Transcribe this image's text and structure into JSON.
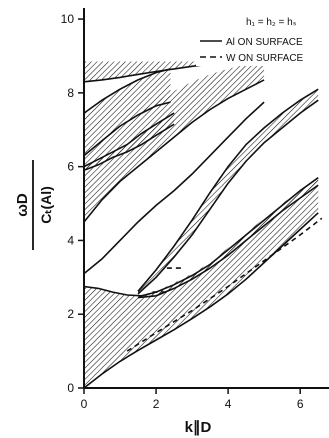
{
  "chart_data": {
    "type": "line",
    "title": "",
    "xlabel": "k∥D",
    "ylabel_numerator": "ωD",
    "ylabel_denominator": "Cₜ(Al)",
    "xlim": [
      0,
      6.8
    ],
    "ylim": [
      0,
      10.3
    ],
    "xticks": [
      0,
      2,
      4,
      6
    ],
    "yticks": [
      0,
      2,
      4,
      6,
      8,
      10
    ],
    "grid": false,
    "legend_position": "top-right",
    "legend": {
      "header": "h₁ = h₂ = hₛ",
      "entries": [
        {
          "label": "Al ON SURFACE",
          "style": "solid"
        },
        {
          "label": "W ON SURFACE",
          "style": "dashed"
        }
      ]
    },
    "hatched_bands": [
      {
        "upper": [
          [
            0,
            2.75
          ],
          [
            0.4,
            2.7
          ],
          [
            0.8,
            2.6
          ],
          [
            1.2,
            2.52
          ],
          [
            1.6,
            2.5
          ],
          [
            2.0,
            2.6
          ],
          [
            2.5,
            2.8
          ],
          [
            3,
            3.05
          ],
          [
            3.5,
            3.35
          ],
          [
            4,
            3.75
          ],
          [
            4.5,
            4.15
          ],
          [
            5,
            4.55
          ],
          [
            5.5,
            4.95
          ],
          [
            6,
            5.35
          ],
          [
            6.5,
            5.7
          ]
        ],
        "lower": [
          [
            0,
            0
          ],
          [
            0.5,
            0.38
          ],
          [
            1,
            0.72
          ],
          [
            1.5,
            1.02
          ],
          [
            2,
            1.3
          ],
          [
            2.5,
            1.58
          ],
          [
            3,
            1.88
          ],
          [
            3.5,
            2.2
          ],
          [
            4,
            2.55
          ],
          [
            4.5,
            2.95
          ],
          [
            5,
            3.4
          ],
          [
            5.5,
            3.85
          ],
          [
            6,
            4.3
          ],
          [
            6.5,
            4.75
          ]
        ]
      },
      {
        "upper": [
          [
            1.5,
            2.62
          ],
          [
            2,
            3.2
          ],
          [
            2.5,
            3.85
          ],
          [
            3,
            4.55
          ],
          [
            3.5,
            5.3
          ],
          [
            4,
            6.0
          ],
          [
            4.5,
            6.6
          ],
          [
            5,
            7.05
          ],
          [
            5.5,
            7.45
          ],
          [
            6,
            7.8
          ],
          [
            6.5,
            8.1
          ]
        ],
        "lower": [
          [
            1.5,
            2.55
          ],
          [
            2,
            3.0
          ],
          [
            2.5,
            3.55
          ],
          [
            3,
            4.15
          ],
          [
            3.5,
            4.85
          ],
          [
            4,
            5.55
          ],
          [
            4.5,
            6.15
          ],
          [
            5,
            6.65
          ],
          [
            5.5,
            7.05
          ],
          [
            6,
            7.45
          ],
          [
            6.5,
            7.8
          ]
        ]
      },
      {
        "upper": [
          [
            1.5,
            2.5
          ],
          [
            2,
            2.62
          ],
          [
            2.5,
            2.85
          ],
          [
            3,
            3.1
          ],
          [
            3.5,
            3.4
          ],
          [
            4,
            3.8
          ],
          [
            4.5,
            4.2
          ],
          [
            5,
            4.6
          ],
          [
            5.5,
            5.0
          ],
          [
            6,
            5.35
          ],
          [
            6.5,
            5.7
          ]
        ],
        "lower": [
          [
            1.5,
            2.45
          ],
          [
            2,
            2.5
          ],
          [
            2.5,
            2.7
          ],
          [
            3,
            2.95
          ],
          [
            3.5,
            3.25
          ],
          [
            4,
            3.6
          ],
          [
            4.5,
            4.0
          ],
          [
            5,
            4.4
          ],
          [
            5.5,
            4.8
          ],
          [
            6,
            5.15
          ],
          [
            6.5,
            5.5
          ]
        ]
      },
      {
        "upper": [
          [
            0,
            7.45
          ],
          [
            0.5,
            7.8
          ],
          [
            1,
            8.1
          ],
          [
            1.5,
            8.35
          ],
          [
            2,
            8.55
          ],
          [
            2.4,
            8.65
          ]
        ],
        "lower": [
          [
            0,
            6.3
          ],
          [
            0.5,
            6.7
          ],
          [
            1,
            7.1
          ],
          [
            1.5,
            7.4
          ],
          [
            2,
            7.65
          ],
          [
            2.4,
            7.75
          ]
        ]
      },
      {
        "upper": [
          [
            0,
            6.25
          ],
          [
            0.5,
            6.7
          ],
          [
            1,
            7.1
          ],
          [
            1.5,
            7.45
          ],
          [
            2,
            7.75
          ],
          [
            2.5,
            8.05
          ],
          [
            3,
            8.3
          ],
          [
            3.5,
            8.5
          ],
          [
            4,
            8.65
          ],
          [
            4.5,
            8.78
          ],
          [
            5,
            8.85
          ]
        ],
        "lower": [
          [
            0,
            4.5
          ],
          [
            0.5,
            5.1
          ],
          [
            1,
            5.6
          ],
          [
            1.5,
            6.0
          ],
          [
            2,
            6.4
          ],
          [
            2.5,
            6.8
          ],
          [
            3,
            7.2
          ],
          [
            3.5,
            7.55
          ],
          [
            4,
            7.85
          ],
          [
            4.5,
            8.1
          ],
          [
            5,
            8.35
          ]
        ]
      },
      {
        "upper": [
          [
            0,
            8.85
          ],
          [
            1,
            8.85
          ],
          [
            2,
            8.85
          ],
          [
            3,
            8.85
          ],
          [
            4,
            8.85
          ],
          [
            5,
            8.85
          ]
        ],
        "lower": [
          [
            0,
            8.3
          ],
          [
            0.5,
            8.35
          ],
          [
            1,
            8.42
          ],
          [
            1.5,
            8.5
          ],
          [
            2,
            8.58
          ],
          [
            2.5,
            8.65
          ],
          [
            3,
            8.72
          ],
          [
            3.5,
            8.78
          ],
          [
            4,
            8.82
          ],
          [
            5,
            8.85
          ]
        ]
      },
      {
        "upper": [
          [
            0,
            6.0
          ],
          [
            0.4,
            6.2
          ],
          [
            0.8,
            6.4
          ],
          [
            1.2,
            6.6
          ],
          [
            1.6,
            6.9
          ],
          [
            2,
            7.15
          ],
          [
            2.5,
            7.45
          ]
        ],
        "lower": [
          [
            0,
            5.9
          ],
          [
            0.4,
            6.05
          ],
          [
            0.8,
            6.25
          ],
          [
            1.2,
            6.4
          ],
          [
            1.6,
            6.6
          ],
          [
            2,
            6.85
          ],
          [
            2.5,
            7.15
          ]
        ]
      }
    ],
    "solid_curves": [
      [
        [
          0,
          8.3
        ],
        [
          0.5,
          8.35
        ],
        [
          1,
          8.42
        ],
        [
          1.5,
          8.5
        ],
        [
          2,
          8.58
        ],
        [
          2.5,
          8.65
        ],
        [
          3,
          8.72
        ],
        [
          3.5,
          8.78
        ],
        [
          4,
          8.82
        ],
        [
          5,
          8.85
        ]
      ],
      [
        [
          0,
          7.45
        ],
        [
          0.5,
          7.8
        ],
        [
          1,
          8.1
        ],
        [
          1.5,
          8.35
        ],
        [
          2,
          8.55
        ],
        [
          2.4,
          8.65
        ]
      ],
      [
        [
          0,
          6.3
        ],
        [
          0.5,
          6.7
        ],
        [
          1,
          7.1
        ],
        [
          1.5,
          7.4
        ],
        [
          2,
          7.65
        ],
        [
          2.4,
          7.75
        ]
      ],
      [
        [
          0,
          6.0
        ],
        [
          0.4,
          6.2
        ],
        [
          0.8,
          6.4
        ],
        [
          1.2,
          6.6
        ],
        [
          1.6,
          6.9
        ],
        [
          2,
          7.15
        ],
        [
          2.5,
          7.45
        ]
      ],
      [
        [
          0,
          5.9
        ],
        [
          0.4,
          6.05
        ],
        [
          0.8,
          6.25
        ],
        [
          1.2,
          6.4
        ],
        [
          1.6,
          6.6
        ],
        [
          2,
          6.85
        ],
        [
          2.5,
          7.15
        ]
      ],
      [
        [
          0,
          4.5
        ],
        [
          0.5,
          5.1
        ],
        [
          1,
          5.6
        ],
        [
          1.5,
          6.0
        ],
        [
          2,
          6.4
        ],
        [
          2.5,
          6.8
        ],
        [
          3,
          7.2
        ],
        [
          3.5,
          7.55
        ],
        [
          4,
          7.85
        ],
        [
          4.5,
          8.1
        ],
        [
          5,
          8.35
        ]
      ],
      [
        [
          0,
          3.1
        ],
        [
          0.5,
          3.5
        ],
        [
          1,
          4.0
        ],
        [
          1.5,
          4.5
        ],
        [
          2,
          4.95
        ],
        [
          2.5,
          5.35
        ],
        [
          3,
          5.8
        ],
        [
          3.5,
          6.3
        ],
        [
          4,
          6.8
        ],
        [
          4.5,
          7.3
        ],
        [
          5,
          7.75
        ]
      ],
      [
        [
          0,
          2.75
        ],
        [
          0.4,
          2.7
        ],
        [
          0.8,
          2.6
        ],
        [
          1.2,
          2.52
        ],
        [
          1.6,
          2.5
        ],
        [
          2.0,
          2.6
        ],
        [
          2.5,
          2.8
        ],
        [
          3,
          3.05
        ],
        [
          3.5,
          3.35
        ],
        [
          4,
          3.75
        ],
        [
          4.5,
          4.15
        ],
        [
          5,
          4.55
        ],
        [
          5.5,
          4.95
        ],
        [
          6,
          5.35
        ],
        [
          6.5,
          5.7
        ]
      ],
      [
        [
          1.5,
          2.62
        ],
        [
          2,
          3.2
        ],
        [
          2.5,
          3.85
        ],
        [
          3,
          4.55
        ],
        [
          3.5,
          5.3
        ],
        [
          4,
          6.0
        ],
        [
          4.5,
          6.6
        ],
        [
          5,
          7.05
        ],
        [
          5.5,
          7.45
        ],
        [
          6,
          7.8
        ],
        [
          6.5,
          8.1
        ]
      ],
      [
        [
          1.5,
          2.55
        ],
        [
          2,
          3.0
        ],
        [
          2.5,
          3.55
        ],
        [
          3,
          4.15
        ],
        [
          3.5,
          4.85
        ],
        [
          4,
          5.55
        ],
        [
          4.5,
          6.15
        ],
        [
          5,
          6.65
        ],
        [
          5.5,
          7.05
        ],
        [
          6,
          7.45
        ],
        [
          6.5,
          7.8
        ]
      ],
      [
        [
          1.5,
          2.45
        ],
        [
          2,
          2.5
        ],
        [
          2.5,
          2.7
        ],
        [
          3,
          2.95
        ],
        [
          3.5,
          3.25
        ],
        [
          4,
          3.6
        ],
        [
          4.5,
          4.0
        ],
        [
          5,
          4.4
        ],
        [
          5.5,
          4.8
        ],
        [
          6,
          5.15
        ],
        [
          6.5,
          5.5
        ]
      ],
      [
        [
          0,
          0
        ],
        [
          0.5,
          0.38
        ],
        [
          1,
          0.72
        ],
        [
          1.5,
          1.02
        ],
        [
          2,
          1.3
        ],
        [
          2.5,
          1.58
        ],
        [
          3,
          1.88
        ],
        [
          3.5,
          2.2
        ],
        [
          4,
          2.55
        ],
        [
          4.5,
          2.95
        ],
        [
          5,
          3.4
        ],
        [
          5.5,
          3.85
        ],
        [
          6,
          4.3
        ],
        [
          6.5,
          4.75
        ]
      ]
    ],
    "dashed_curves": [
      [
        [
          1.2,
          1.0
        ],
        [
          2,
          1.5
        ],
        [
          3,
          2.1
        ],
        [
          4,
          2.75
        ],
        [
          5,
          3.45
        ],
        [
          6,
          4.15
        ],
        [
          6.6,
          4.6
        ]
      ],
      [
        [
          2.3,
          3.25
        ],
        [
          2.8,
          3.25
        ]
      ],
      [
        [
          1.9,
          2.6
        ],
        [
          2.4,
          2.6
        ]
      ]
    ]
  }
}
